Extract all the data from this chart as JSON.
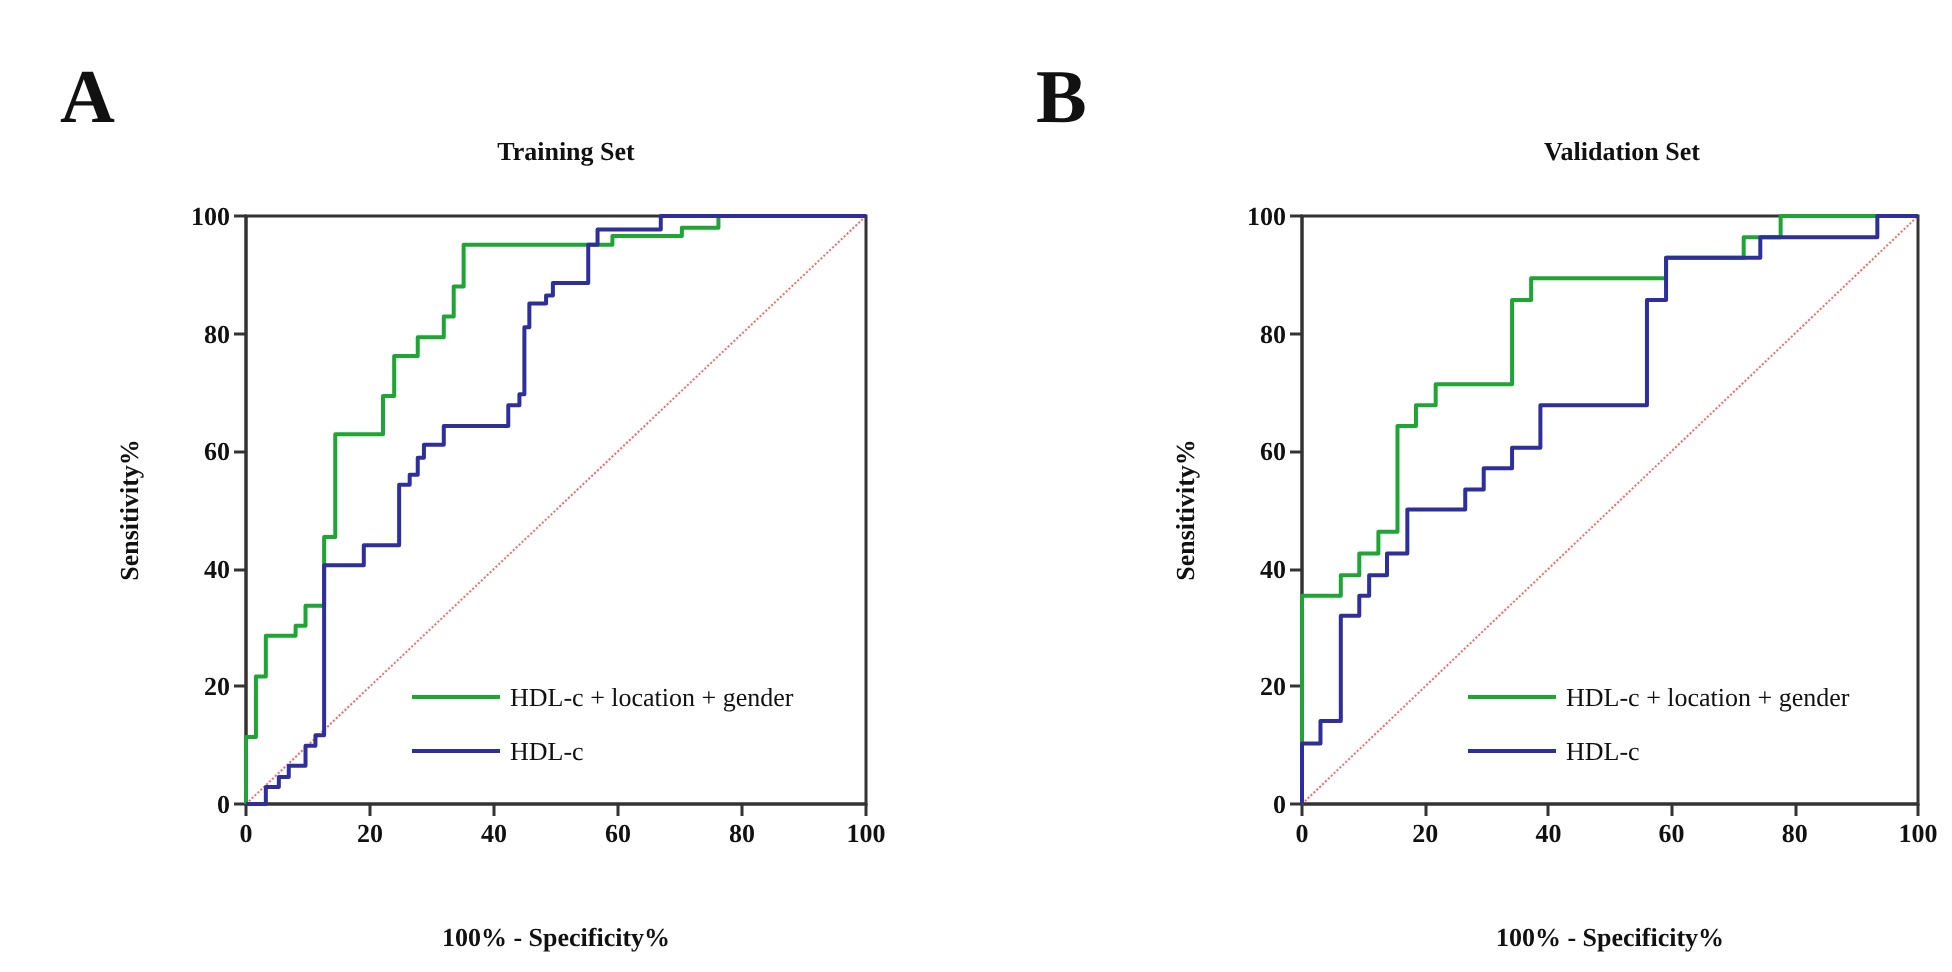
{
  "chart_data": [
    {
      "type": "step",
      "title": "Training Set",
      "xlabel": "100% - Specificity%",
      "ylabel": "Sensitivity%",
      "annotations": [
        "A"
      ],
      "xlim": [
        0,
        100
      ],
      "ylim": [
        0,
        100
      ],
      "xticks": [
        0,
        20,
        40,
        60,
        80,
        100
      ],
      "yticks": [
        0,
        20,
        40,
        60,
        80,
        100
      ],
      "grid": false,
      "legend": "bottom right",
      "marker": "none",
      "line_style": "solid",
      "series": [
        {
          "name": "HDL-c + location + gender",
          "color": "#1ea534",
          "x": [
            0,
            0,
            1.6,
            3.2,
            8,
            9.6,
            12.6,
            14.4,
            22.1,
            23.9,
            27.7,
            31.9,
            33.5,
            35.1,
            59.1,
            70.3,
            76.2,
            100
          ],
          "values": [
            0,
            11.4,
            21.7,
            28.6,
            30.3,
            33.7,
            45.4,
            62.9,
            69.4,
            76.2,
            79.4,
            82.9,
            88,
            95.1,
            96.6,
            98,
            100,
            100
          ]
        },
        {
          "name": "HDL-c",
          "color": "#2e2f9c",
          "x": [
            0,
            3.2,
            5.3,
            6.9,
            9.6,
            11.2,
            12.6,
            19,
            24.7,
            26.4,
            27.7,
            28.7,
            31.9,
            42.3,
            44.1,
            44.9,
            45.7,
            48.4,
            49.5,
            55.2,
            56.7,
            66.9,
            100
          ],
          "values": [
            0,
            2.9,
            4.6,
            6.5,
            9.9,
            11.7,
            40.6,
            44,
            54.3,
            56,
            58.9,
            61.1,
            64.3,
            67.8,
            69.7,
            81.1,
            85.1,
            86.5,
            88.6,
            95.1,
            97.7,
            100,
            100
          ]
        },
        {
          "type": "line",
          "color": "#f56a6a",
          "line_style": "dotted",
          "x": [
            0,
            100
          ],
          "values": [
            0,
            100
          ]
        }
      ]
    },
    {
      "type": "step",
      "title": "Validation Set",
      "xlabel": "100% - Specificity%",
      "ylabel": "Sensitivity%",
      "annotations": [
        "B"
      ],
      "xlim": [
        0,
        100
      ],
      "ylim": [
        0,
        100
      ],
      "xticks": [
        0,
        20,
        40,
        60,
        80,
        100
      ],
      "yticks": [
        0,
        20,
        40,
        60,
        80,
        100
      ],
      "grid": false,
      "legend": "bottom right",
      "marker": "none",
      "line_style": "solid",
      "series": [
        {
          "name": "HDL-c + location + gender",
          "color": "#1ea534",
          "x": [
            0,
            0,
            6.3,
            9.3,
            12.4,
            15.5,
            18.5,
            21.7,
            34.1,
            37.2,
            59.1,
            71.7,
            77.7,
            100
          ],
          "values": [
            0,
            35.4,
            38.9,
            42.6,
            46.3,
            64.3,
            67.8,
            71.4,
            85.7,
            89.4,
            92.9,
            96.4,
            100,
            100
          ]
        },
        {
          "name": "HDL-c",
          "color": "#2e2f9c",
          "x": [
            0,
            0,
            3,
            6.3,
            9.3,
            10.9,
            13.8,
            17.1,
            26.5,
            29.5,
            34.1,
            38.7,
            56,
            59.1,
            74.4,
            93.4,
            100
          ],
          "values": [
            0,
            10.3,
            14.1,
            32,
            35.4,
            38.9,
            42.6,
            50.1,
            53.5,
            57.1,
            60.6,
            67.8,
            85.7,
            92.9,
            96.4,
            100,
            100
          ]
        },
        {
          "type": "line",
          "color": "#f56a6a",
          "line_style": "dotted",
          "x": [
            0,
            100
          ],
          "values": [
            0,
            100
          ]
        }
      ]
    }
  ]
}
